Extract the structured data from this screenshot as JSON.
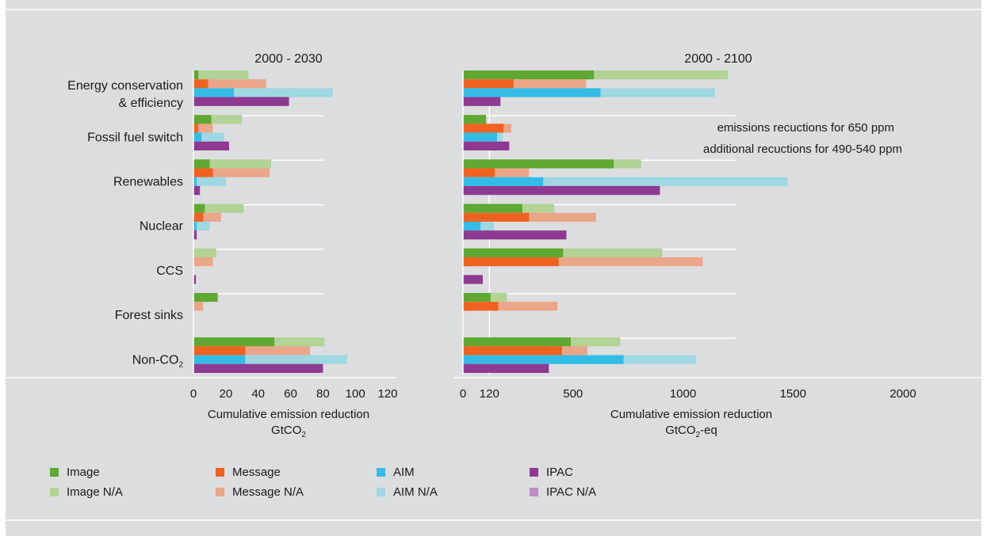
{
  "chart_data": [
    {
      "type": "bar",
      "orientation": "horizontal",
      "title": "2000 - 2030",
      "xlabel": "Cumulative emission reduction",
      "xunit": "GtCO2",
      "xlim": [
        0,
        120
      ],
      "xticks": [
        0,
        20,
        40,
        60,
        80,
        100,
        120
      ],
      "categories": [
        "Energy conservation\n& efficiency",
        "Fossil fuel switch",
        "Renewables",
        "Nuclear",
        "CCS",
        "Forest sinks",
        "Non-CO2"
      ],
      "series": [
        {
          "name": "Image",
          "values": [
            3,
            11,
            10,
            7,
            0,
            15,
            50
          ]
        },
        {
          "name": "Image N/A",
          "values": [
            34,
            30,
            48,
            31,
            14,
            15,
            81
          ]
        },
        {
          "name": "Message",
          "values": [
            9,
            3,
            12,
            6,
            0,
            0,
            32
          ]
        },
        {
          "name": "Message N/A",
          "values": [
            45,
            12,
            47,
            17,
            12,
            6,
            72
          ]
        },
        {
          "name": "AIM",
          "values": [
            25,
            5,
            2,
            2,
            0,
            0,
            32
          ]
        },
        {
          "name": "AIM N/A",
          "values": [
            86,
            19,
            20,
            10,
            0,
            0,
            95
          ]
        },
        {
          "name": "IPAC",
          "values": [
            59,
            22,
            4,
            2,
            1.5,
            0,
            80
          ]
        },
        {
          "name": "IPAC N/A",
          "values": [
            59,
            22,
            4,
            2,
            1.5,
            0,
            80
          ]
        }
      ]
    },
    {
      "type": "bar",
      "orientation": "horizontal",
      "title": "2000 - 2100",
      "xlabel": "Cumulative emission reduction",
      "xunit": "GtCO2-eq",
      "xlim": [
        0,
        2000
      ],
      "xticks": [
        0,
        120,
        500,
        1000,
        1500,
        2000
      ],
      "reference_line": 120,
      "categories": [
        "Energy conservation\n& efficiency",
        "Fossil fuel switch",
        "Renewables",
        "Nuclear",
        "CCS",
        "Forest sinks",
        "Non-CO2"
      ],
      "annotations": [
        "emissions recuctions for 650 ppm",
        "additional recuctions for 490-540 ppm"
      ],
      "series": [
        {
          "name": "Image",
          "values": [
            595,
            105,
            685,
            270,
            455,
            125,
            490
          ]
        },
        {
          "name": "Image N/A",
          "values": [
            1205,
            105,
            810,
            415,
            905,
            200,
            715
          ]
        },
        {
          "name": "Message",
          "values": [
            230,
            185,
            145,
            300,
            435,
            160,
            450
          ]
        },
        {
          "name": "Message N/A",
          "values": [
            560,
            220,
            300,
            605,
            1090,
            430,
            565
          ]
        },
        {
          "name": "AIM",
          "values": [
            625,
            155,
            365,
            80,
            0,
            0,
            730
          ]
        },
        {
          "name": "AIM N/A",
          "values": [
            1145,
            180,
            1475,
            140,
            0,
            0,
            1060
          ]
        },
        {
          "name": "IPAC",
          "values": [
            170,
            210,
            895,
            470,
            90,
            0,
            390
          ]
        },
        {
          "name": "IPAC N/A",
          "values": [
            170,
            210,
            895,
            470,
            90,
            0,
            390
          ]
        }
      ]
    }
  ],
  "legend": [
    {
      "label": "Image",
      "color": "#5fa832"
    },
    {
      "label": "Message",
      "color": "#f0621f"
    },
    {
      "label": "AIM",
      "color": "#33bce6"
    },
    {
      "label": "IPAC",
      "color": "#8e3a91"
    },
    {
      "label": "Image N/A",
      "color": "#b3d296"
    },
    {
      "label": "Message N/A",
      "color": "#eba68a"
    },
    {
      "label": "AIM N/A",
      "color": "#9fd7e3"
    },
    {
      "label": "IPAC N/A",
      "color": "#bd8ec2"
    }
  ]
}
